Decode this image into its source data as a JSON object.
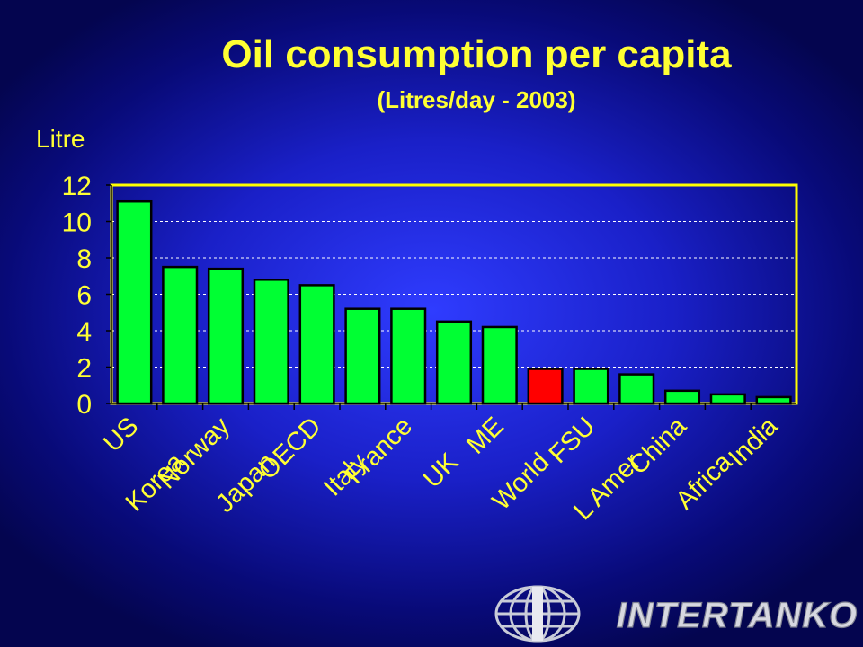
{
  "title": "Oil consumption per capita",
  "subtitle": "(Litres/day - 2003)",
  "colors": {
    "bar": "#00ff33",
    "highlight": "#ff0000",
    "text": "#ffff33",
    "axis_frame": "#ffff00",
    "grid": "#ffffff"
  },
  "chart_data": {
    "type": "bar",
    "title": "Oil consumption per capita",
    "subtitle": "(Litres/day - 2003)",
    "ylabel": "Litre",
    "xlabel": "",
    "ylim": [
      0,
      12
    ],
    "yticks": [
      0,
      2,
      4,
      6,
      8,
      10,
      12
    ],
    "grid": true,
    "grid_style": "dashed",
    "categories": [
      "US",
      "Korea",
      "Norway",
      "Japan",
      "OECD",
      "Italy",
      "France",
      "UK",
      "ME",
      "World",
      "FSU",
      "L Amer",
      "China",
      "Africa",
      "India"
    ],
    "values": [
      11.1,
      7.5,
      7.4,
      6.8,
      6.5,
      5.2,
      5.2,
      4.5,
      4.2,
      1.9,
      1.9,
      1.6,
      0.7,
      0.5,
      0.35
    ],
    "highlight_category": "World"
  },
  "logo": {
    "text": "INTERTANKO",
    "icon": "globe-icon"
  }
}
